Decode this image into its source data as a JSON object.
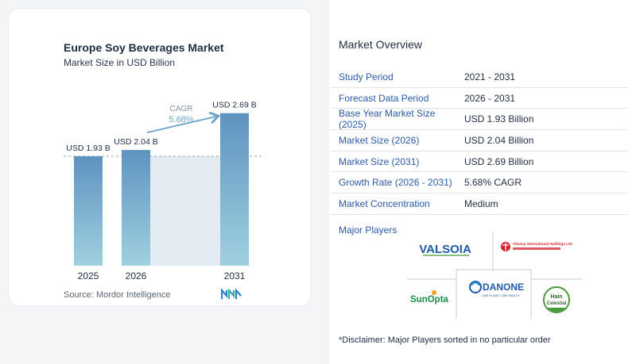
{
  "chart_data": {
    "type": "bar",
    "title": "Europe Soy Beverages Market",
    "subtitle": "Market Size in USD Billion",
    "categories": [
      "2025",
      "2026",
      "2031"
    ],
    "values": [
      1.93,
      2.04,
      2.69
    ],
    "value_labels": [
      "USD 1.93 B",
      "USD 2.04 B",
      "USD 2.69 B"
    ],
    "cagr_label": "CAGR",
    "cagr_value": "5.68%",
    "reference_line_value": 1.93,
    "colors": {
      "bar_top": "#5f93bf",
      "bar_bottom": "#9fd0e0",
      "band": "#e3ebf3",
      "arrow": "#6aa3cc",
      "cagr_text": "#6aa3cc"
    }
  },
  "source_text": "Source:  Mordor Intelligence",
  "overview": {
    "title": "Market Overview",
    "rows": [
      {
        "key": "Study Period",
        "value": "2021 - 2031"
      },
      {
        "key": "Forecast Data Period",
        "value": "2026 - 2031"
      },
      {
        "key": "Base Year Market Size (2025)",
        "value": "USD 1.93 Billion"
      },
      {
        "key": "Market Size (2026)",
        "value": "USD 2.04 Billion"
      },
      {
        "key": "Market Size (2031)",
        "value": "USD 2.69 Billion"
      },
      {
        "key": "Growth Rate (2026 - 2031)",
        "value": "5.68% CAGR"
      },
      {
        "key": "Market Concentration",
        "value": "Medium"
      }
    ]
  },
  "players": {
    "label": "Major Players",
    "logos": {
      "valsoia": "VALSOIA",
      "vitasoy": "Vitasoy International Holdings Ltd.",
      "danone": "DANONE",
      "danone_tag": "ONE PLANET. ONE HEALTH",
      "sunopta": "SunOpta",
      "hain_1": "Hain",
      "hain_2": "Celestial"
    }
  },
  "disclaimer": "*Disclaimer: Major Players sorted in no particular order"
}
